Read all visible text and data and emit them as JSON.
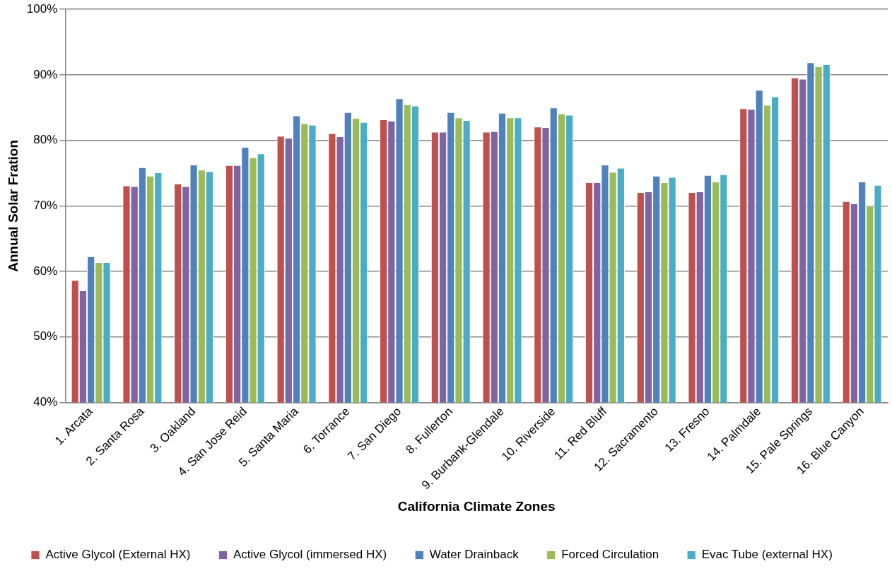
{
  "chart_data": {
    "type": "bar",
    "xlabel": "California Climate Zones",
    "ylabel": "Annual Solar Fration",
    "categories": [
      "1. Arcata",
      "2. Santa Rosa",
      "3. Oakland",
      "4. San Jose Reid",
      "5. Santa Maria",
      "6. Torrance",
      "7. San Diego",
      "8. Fullerton",
      "9. Burbank-Glendale",
      "10. Riverside",
      "11. Red Bluff",
      "12. Sacramento",
      "13. Fresno",
      "14. Palmdale",
      "15. Pale Springs",
      "16. Blue Canyon"
    ],
    "series": [
      {
        "name": "Active Glycol (External HX)",
        "color": "#c0504d",
        "values": [
          58.7,
          73.1,
          73.4,
          76.2,
          80.7,
          81.1,
          83.2,
          81.3,
          81.3,
          82.1,
          73.6,
          72.1,
          72.1,
          84.9,
          89.6,
          70.7
        ]
      },
      {
        "name": "Active Glycol (immersed HX)",
        "color": "#8064a2",
        "values": [
          57.1,
          73.0,
          73.0,
          76.2,
          80.4,
          80.6,
          83.0,
          81.3,
          81.4,
          82.0,
          73.6,
          72.2,
          72.2,
          84.8,
          89.4,
          70.4
        ]
      },
      {
        "name": "Water Drainback",
        "color": "#4f81bd",
        "values": [
          62.3,
          75.9,
          76.3,
          79.0,
          83.8,
          84.3,
          86.4,
          84.3,
          84.2,
          85.0,
          76.3,
          74.6,
          74.7,
          87.7,
          91.9,
          73.7
        ]
      },
      {
        "name": "Forced Circulation",
        "color": "#9bbb59",
        "values": [
          61.4,
          74.6,
          75.5,
          77.4,
          82.6,
          83.4,
          85.5,
          83.5,
          83.5,
          84.1,
          75.2,
          73.6,
          73.7,
          85.4,
          91.3,
          70.0
        ]
      },
      {
        "name": "Evac Tube (external HX)",
        "color": "#4bacc6",
        "values": [
          61.4,
          75.1,
          75.3,
          78.0,
          82.4,
          82.8,
          85.3,
          83.1,
          83.5,
          83.9,
          75.8,
          74.4,
          74.8,
          86.7,
          91.6,
          73.2
        ]
      }
    ],
    "ylim": [
      40,
      100
    ],
    "yticks": [
      {
        "value": 40,
        "label": "40%"
      },
      {
        "value": 50,
        "label": "50%"
      },
      {
        "value": 60,
        "label": "60%"
      },
      {
        "value": 70,
        "label": "70%"
      },
      {
        "value": 80,
        "label": "80%"
      },
      {
        "value": 90,
        "label": "90%"
      },
      {
        "value": 100,
        "label": "100%"
      }
    ],
    "grid": "y",
    "legend": "bottom"
  }
}
